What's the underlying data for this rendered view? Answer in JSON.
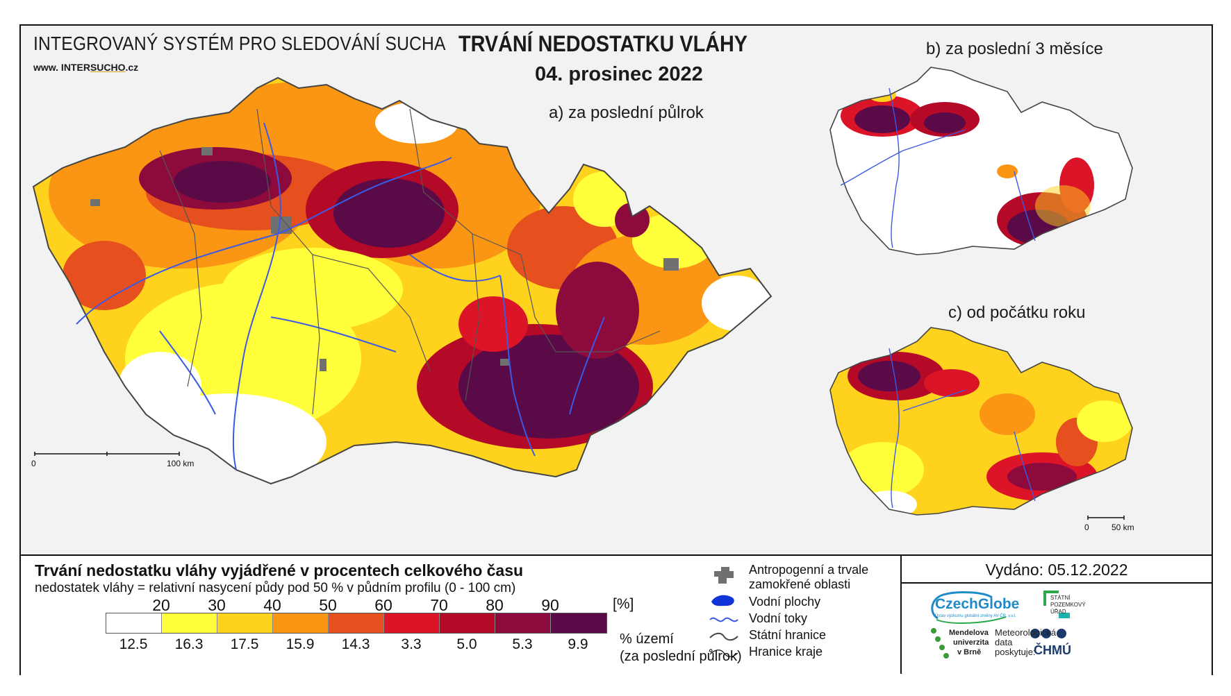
{
  "header": {
    "system_name": "INTEGROVANÝ SYSTÉM PRO SLEDOVÁNÍ SUCHA",
    "url_prefix": "www. INTER",
    "url_highlight": "SUCHO",
    "url_suffix": ".cz",
    "title": "TRVÁNÍ NEDOSTATKU VLÁHY",
    "date": "04. prosinec 2022"
  },
  "maps": {
    "a_label": "a) za poslední půlrok",
    "b_label": "b) za poslední 3 měsíce",
    "c_label": "c) od počátku roku",
    "main_scale": {
      "zero": "0",
      "end": "100 km"
    },
    "small_scale": {
      "zero": "0",
      "end": "50 km"
    }
  },
  "legend": {
    "title": "Trvání nedostatku vláhy vyjádřené v procentech celkového času",
    "subtitle": "nedostatek vláhy = relativní nasycení půdy pod 50 % v půdním profilu (0 - 100 cm)",
    "unit": "[%]",
    "thresholds": [
      "20",
      "30",
      "40",
      "50",
      "60",
      "70",
      "80",
      "90"
    ],
    "class_colors": [
      "#ffffff",
      "#ffff3c",
      "#ffd21e",
      "#fa9614",
      "#e6501e",
      "#dc1428",
      "#b40a28",
      "#8c0a3c",
      "#5a0a46"
    ],
    "territory_percent": [
      "12.5",
      "16.3",
      "17.5",
      "15.9",
      "14.3",
      "3.3",
      "5.0",
      "5.3",
      "9.9"
    ],
    "territory_label_1": "% území",
    "territory_label_2": "(za poslední půlrok)"
  },
  "symbols": {
    "urban": "Antropogenní a trvale",
    "urban_2": "zamokřené oblasti",
    "water_bodies": "Vodní plochy",
    "rivers": "Vodní toky",
    "state_border": "Státní hranice",
    "region_border": "Hranice kraje"
  },
  "issued": "Vydáno: 05.12.2022",
  "logos": {
    "czechglobe": "CzechGlobe",
    "czechglobe_sub": "Ústav výzkumu globální změny AV ČR, v.v.i.",
    "spu_1": "STÁTNÍ",
    "spu_2": "POZEMKOVÝ",
    "spu_3": "ÚŘAD",
    "mendel_1": "Mendelova",
    "mendel_2": "univerzita",
    "mendel_3": "v Brně",
    "meteo_1": "Meteorologická",
    "meteo_2": "data",
    "meteo_3": "poskytuje:",
    "chmu": "ČHMÚ"
  },
  "accent_colors": {
    "river": "#3a5ae6",
    "urban": "#707070",
    "czechglobe": "#1e8bc8",
    "spu": "#2ca84a",
    "chmu": "#1b3a6b"
  }
}
